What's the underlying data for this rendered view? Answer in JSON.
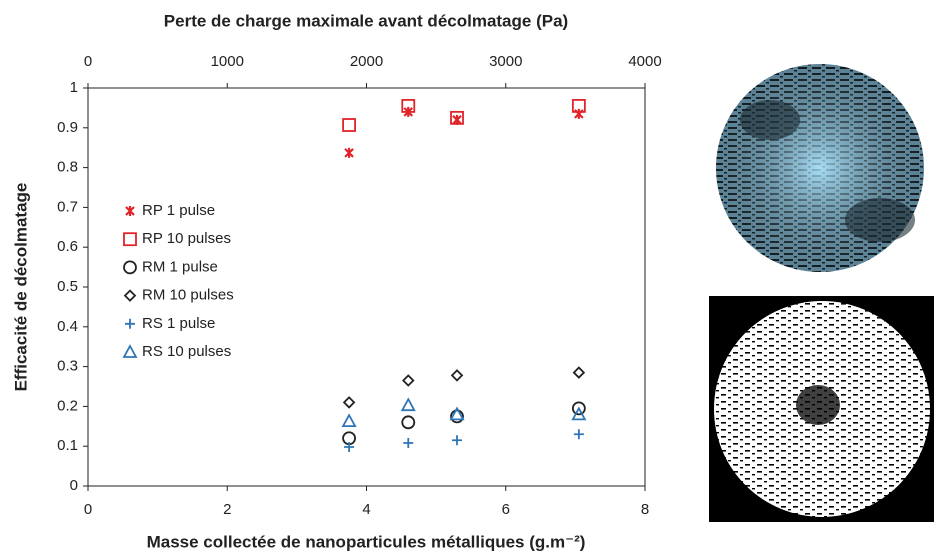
{
  "chart_data": {
    "type": "scatter",
    "title": "Perte de charge maximale avant décolmatage (Pa)",
    "x_label": "Masse collectée de nanoparticules métalliques (g.m⁻²)",
    "y_label": "Efficacité de décolmatage",
    "xlim": [
      0,
      8
    ],
    "xticks": [
      0,
      2,
      4,
      6,
      8
    ],
    "x2lim": [
      0,
      4000
    ],
    "x2ticks": [
      0,
      1000,
      2000,
      3000,
      4000
    ],
    "ylim": [
      0,
      1
    ],
    "yticks": [
      0,
      0.1,
      0.2,
      0.3,
      0.4,
      0.5,
      0.6,
      0.7,
      0.8,
      0.9,
      1
    ],
    "legend": "left",
    "series": [
      {
        "name": "RP 1 pulse",
        "color": "#e0242a",
        "marker": "asterisk",
        "x": [
          3.75,
          4.6,
          5.3,
          7.05
        ],
        "values": [
          0.837,
          0.94,
          0.92,
          0.935
        ]
      },
      {
        "name": "RP 10 pulses",
        "color": "#e0242a",
        "marker": "square",
        "x": [
          3.75,
          4.6,
          5.3,
          7.05
        ],
        "values": [
          0.907,
          0.955,
          0.925,
          0.955
        ]
      },
      {
        "name": "RM 1 pulse",
        "color": "#222222",
        "marker": "circle",
        "x": [
          3.75,
          4.6,
          5.3,
          7.05
        ],
        "values": [
          0.12,
          0.16,
          0.175,
          0.195
        ]
      },
      {
        "name": "RM 10 pulses",
        "color": "#222222",
        "marker": "diamond",
        "x": [
          3.75,
          4.6,
          5.3,
          7.05
        ],
        "values": [
          0.21,
          0.265,
          0.278,
          0.285
        ]
      },
      {
        "name": "RS 1 pulse",
        "color": "#2e75b6",
        "marker": "plus",
        "x": [
          3.75,
          4.6,
          5.3,
          7.05
        ],
        "values": [
          0.098,
          0.108,
          0.115,
          0.13
        ]
      },
      {
        "name": "RS 10 pulses",
        "color": "#2e75b6",
        "marker": "triangle",
        "x": [
          3.75,
          4.6,
          5.3,
          7.05
        ],
        "values": [
          0.163,
          0.203,
          0.18,
          0.18
        ]
      }
    ]
  }
}
